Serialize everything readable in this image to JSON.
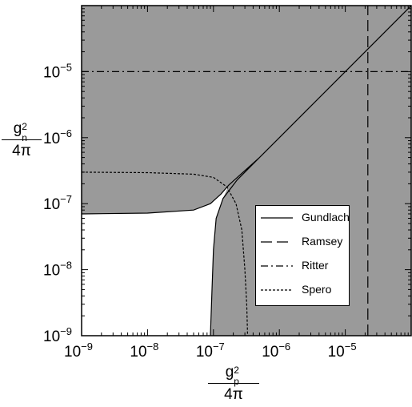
{
  "chart_data": {
    "type": "line",
    "title": "",
    "xlabel": {
      "numerator": "g",
      "num_sub": "p",
      "num_sup": "2",
      "denominator": "4π"
    },
    "ylabel": {
      "numerator": "g",
      "num_sub": "n",
      "num_sup": "2",
      "denominator": "4π"
    },
    "xscale": "log",
    "yscale": "log",
    "xlim": [
      1e-09,
      0.0001
    ],
    "ylim": [
      1e-09,
      0.0001
    ],
    "x_ticks": [
      {
        "base": "10",
        "exp": "−9",
        "value": 1e-09
      },
      {
        "base": "10",
        "exp": "−8",
        "value": 1e-08
      },
      {
        "base": "10",
        "exp": "−7",
        "value": 1e-07
      },
      {
        "base": "10",
        "exp": "−6",
        "value": 1e-06
      },
      {
        "base": "10",
        "exp": "−5",
        "value": 1e-05
      }
    ],
    "y_ticks": [
      {
        "base": "10",
        "exp": "−9",
        "value": 1e-09
      },
      {
        "base": "10",
        "exp": "−8",
        "value": 1e-08
      },
      {
        "base": "10",
        "exp": "−7",
        "value": 1e-07
      },
      {
        "base": "10",
        "exp": "−6",
        "value": 1e-06
      },
      {
        "base": "10",
        "exp": "−5",
        "value": 1e-05
      }
    ],
    "grid": false,
    "excluded_region_color": "#9a9a9a",
    "allowed_region_color": "#ffffff",
    "legend_position": "lower-right",
    "series": [
      {
        "name": "Gundlach",
        "style": "solid",
        "x": [
          1e-09,
          1e-08,
          5e-08,
          9e-08,
          1.3e-07,
          1.7e-07,
          2.3e-07,
          5e-07,
          1e-06,
          1e-05,
          0.0001,
          0.0001,
          1e-05,
          1e-06,
          5e-07,
          2.3e-07,
          1.4e-07,
          1.1e-07,
          1e-07,
          9.5e-08,
          9e-08
        ],
        "y": [
          7e-08,
          7.2e-08,
          8e-08,
          1e-07,
          1.4e-07,
          1.9e-07,
          2.5e-07,
          5e-07,
          1e-06,
          1e-05,
          0.0001,
          0.0001,
          1e-05,
          1e-06,
          5e-07,
          2.3e-07,
          1.2e-07,
          6e-08,
          2e-08,
          5e-09,
          1e-09
        ]
      },
      {
        "name": "Ramsey",
        "style": "dashed",
        "x": [
          2.2e-05,
          2.2e-05
        ],
        "y": [
          1e-09,
          0.0001
        ]
      },
      {
        "name": "Ritter",
        "style": "dash-dot",
        "x": [
          1e-09,
          0.0001
        ],
        "y": [
          1e-05,
          1e-05
        ]
      },
      {
        "name": "Spero",
        "style": "dotted",
        "x": [
          1e-09,
          1e-08,
          5e-08,
          1e-07,
          1.6e-07,
          2.2e-07,
          2.7e-07,
          3e-07,
          3.2e-07,
          3.3e-07
        ],
        "y": [
          3e-07,
          2.95e-07,
          2.8e-07,
          2.5e-07,
          1.8e-07,
          1e-07,
          4e-08,
          1e-08,
          3e-09,
          1e-09
        ]
      }
    ]
  }
}
